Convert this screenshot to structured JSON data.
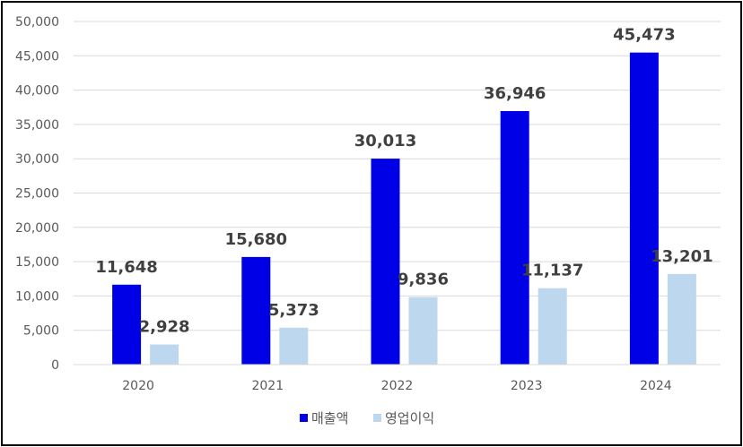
{
  "chart_data": {
    "type": "bar",
    "categories": [
      "2020",
      "2021",
      "2022",
      "2023",
      "2024"
    ],
    "series": [
      {
        "name": "매출액",
        "values": [
          11648,
          15680,
          30013,
          36946,
          45473
        ],
        "labels": [
          "11,648",
          "15,680",
          "30,013",
          "36,946",
          "45,473"
        ],
        "color": "#0000E6"
      },
      {
        "name": "영업이익",
        "values": [
          2928,
          5373,
          9836,
          11137,
          13201
        ],
        "labels": [
          "2,928",
          "5,373",
          "9,836",
          "11,137",
          "13,201"
        ],
        "color": "#BDD7EE"
      }
    ],
    "ylim": [
      0,
      50000
    ],
    "yticks": [
      0,
      5000,
      10000,
      15000,
      20000,
      25000,
      30000,
      35000,
      40000,
      45000,
      50000
    ],
    "ytick_labels": [
      "0",
      "5,000",
      "10,000",
      "15,000",
      "20,000",
      "25,000",
      "30,000",
      "35,000",
      "40,000",
      "45,000",
      "50,000"
    ],
    "grid": true,
    "legend_position": "bottom"
  }
}
